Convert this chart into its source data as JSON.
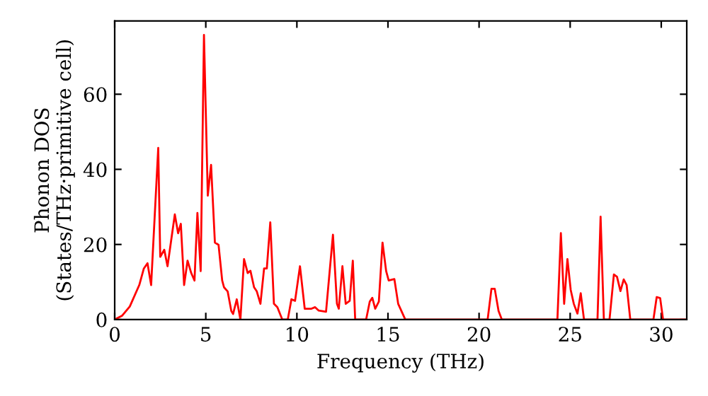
{
  "chart_data": {
    "type": "line",
    "xlabel": "Frequency (THz)",
    "ylabel": "Phonon DOS\n(States/THz·primitive cell)",
    "xlim": [
      0,
      31.4
    ],
    "ylim": [
      0,
      79.5
    ],
    "xticks": [
      0,
      5,
      10,
      15,
      20,
      25,
      30
    ],
    "yticks": [
      0,
      20,
      40,
      60
    ],
    "grid": false,
    "legend": false,
    "marker": "none",
    "line_style": "solid",
    "series": [
      {
        "color": "#ff0000",
        "x": [
          0,
          0.4,
          0.83,
          1.35,
          1.6,
          1.8,
          2.0,
          2.39,
          2.5,
          2.72,
          2.9,
          3.3,
          3.48,
          3.63,
          3.81,
          4.0,
          4.2,
          4.38,
          4.54,
          4.72,
          4.9,
          5.11,
          5.29,
          5.5,
          5.7,
          5.9,
          6.0,
          6.2,
          6.4,
          6.5,
          6.7,
          6.9,
          7.1,
          7.3,
          7.45,
          7.65,
          7.8,
          8.0,
          8.2,
          8.35,
          8.54,
          8.74,
          8.93,
          9.2,
          9.5,
          9.7,
          9.9,
          10.17,
          10.43,
          10.8,
          11.0,
          11.2,
          11.6,
          11.98,
          12.2,
          12.3,
          12.5,
          12.68,
          12.9,
          13.07,
          13.2,
          13.8,
          14.0,
          14.14,
          14.3,
          14.5,
          14.7,
          14.9,
          15.04,
          15.35,
          15.56,
          15.95,
          20.47,
          20.68,
          20.86,
          21.07,
          21.25,
          24.3,
          24.49,
          24.67,
          24.85,
          25.03,
          25.2,
          25.4,
          25.58,
          25.76,
          26.5,
          26.67,
          26.85,
          27.16,
          27.4,
          27.57,
          27.76,
          27.94,
          28.1,
          28.3,
          29.57,
          29.75,
          29.94,
          30.1,
          31.4
        ],
        "values": [
          0,
          1,
          3.5,
          9.2,
          13.6,
          15,
          9.2,
          45.7,
          16.7,
          18.6,
          14.2,
          28,
          23,
          25.5,
          9.2,
          15.7,
          12.4,
          10.4,
          28.4,
          12.9,
          75.8,
          33,
          41.2,
          20.5,
          19.9,
          10.4,
          8.6,
          7.5,
          2.3,
          1.5,
          5.4,
          0,
          16.1,
          12.4,
          13,
          8.6,
          7.5,
          4.2,
          13.6,
          13.6,
          25.9,
          4.2,
          3.3,
          0,
          0,
          5.4,
          5,
          14.2,
          2.9,
          2.9,
          3.3,
          2.4,
          2.1,
          22.6,
          4.2,
          2.9,
          14.2,
          4.2,
          5,
          15.7,
          0,
          0,
          4.8,
          5.8,
          2.9,
          4.8,
          20.5,
          12.9,
          10.4,
          10.8,
          4.2,
          0,
          0,
          8.2,
          8.2,
          2.3,
          0,
          0,
          23,
          4.2,
          16.1,
          7.9,
          4.2,
          1.6,
          7,
          0,
          0,
          27.4,
          0,
          0,
          12,
          11.4,
          7.6,
          10.7,
          9.2,
          0,
          0,
          6,
          5.7,
          0,
          0
        ]
      }
    ]
  }
}
